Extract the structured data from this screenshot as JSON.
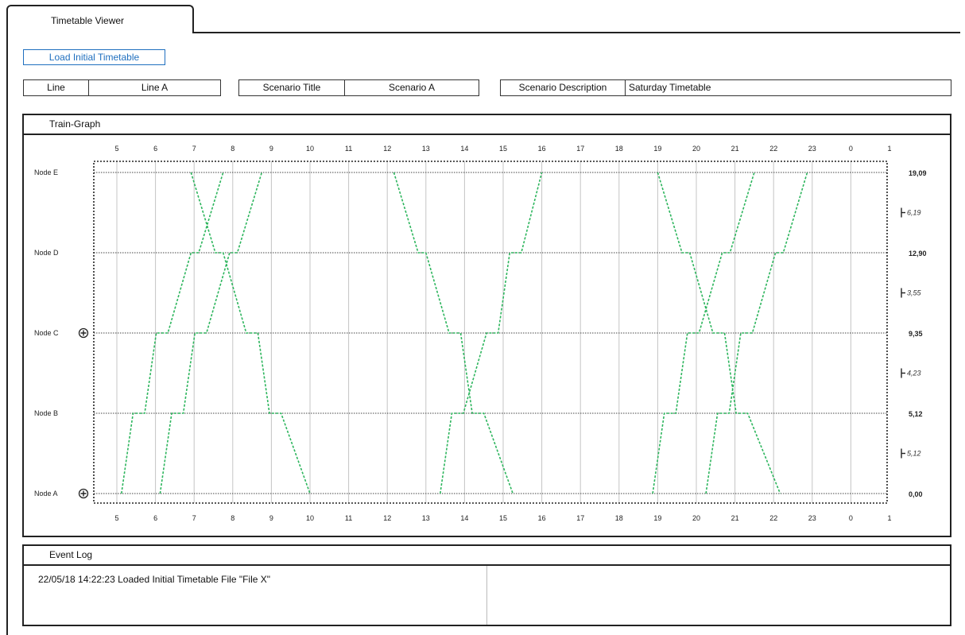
{
  "tab": {
    "label": "Timetable Viewer"
  },
  "load_button": {
    "label": "Load Initial Timetable"
  },
  "fields": [
    {
      "label": "Line",
      "value": "Line A"
    },
    {
      "label": "Scenario Title",
      "value": "Scenario A"
    },
    {
      "label": "Scenario Description",
      "value": "Saturday Timetable"
    }
  ],
  "train_graph": {
    "title": "Train-Graph",
    "hours": [
      "5",
      "6",
      "7",
      "8",
      "9",
      "10",
      "11",
      "12",
      "13",
      "14",
      "15",
      "16",
      "17",
      "18",
      "19",
      "20",
      "21",
      "22",
      "23",
      "0",
      "1"
    ],
    "nodes": [
      {
        "name": "Node E",
        "distance": "19,09"
      },
      {
        "name": "Node D",
        "distance": "12,90"
      },
      {
        "name": "Node C",
        "distance": "9,35"
      },
      {
        "name": "Node B",
        "distance": "5,12"
      },
      {
        "name": "Node A",
        "distance": "0,00"
      }
    ],
    "segment_distances": [
      "6,19",
      "3,55",
      "4,23",
      "5,12"
    ],
    "expand_icons": [
      "Node C",
      "Node A"
    ],
    "train_color": "#2db55d",
    "trains": [
      {
        "dir": "up",
        "pts": [
          [
            5.12,
            0
          ],
          [
            5.42,
            1
          ],
          [
            5.72,
            1
          ],
          [
            6.02,
            2
          ],
          [
            6.32,
            2
          ],
          [
            6.92,
            3
          ],
          [
            7.12,
            3
          ],
          [
            7.75,
            4
          ]
        ]
      },
      {
        "dir": "up",
        "pts": [
          [
            6.12,
            0
          ],
          [
            6.42,
            1
          ],
          [
            6.72,
            1
          ],
          [
            7.02,
            2
          ],
          [
            7.32,
            2
          ],
          [
            7.92,
            3
          ],
          [
            8.12,
            3
          ],
          [
            8.75,
            4
          ]
        ]
      },
      {
        "dir": "down",
        "pts": [
          [
            6.92,
            4
          ],
          [
            7.55,
            3
          ],
          [
            7.75,
            3
          ],
          [
            8.35,
            2
          ],
          [
            8.65,
            2
          ],
          [
            8.95,
            1
          ],
          [
            9.25,
            1
          ],
          [
            10.0,
            0
          ]
        ]
      },
      {
        "dir": "down",
        "pts": [
          [
            12.17,
            4
          ],
          [
            12.8,
            3
          ],
          [
            13.0,
            3
          ],
          [
            13.6,
            2
          ],
          [
            13.9,
            2
          ],
          [
            14.2,
            1
          ],
          [
            14.5,
            1
          ],
          [
            15.25,
            0
          ]
        ]
      },
      {
        "dir": "up",
        "pts": [
          [
            13.37,
            0
          ],
          [
            13.67,
            1
          ],
          [
            13.97,
            1
          ],
          [
            14.57,
            2
          ],
          [
            14.87,
            2
          ],
          [
            15.17,
            3
          ],
          [
            15.47,
            3
          ],
          [
            16.0,
            4
          ]
        ]
      },
      {
        "dir": "down",
        "pts": [
          [
            19.0,
            4
          ],
          [
            19.63,
            3
          ],
          [
            19.83,
            3
          ],
          [
            20.43,
            2
          ],
          [
            20.73,
            2
          ],
          [
            21.03,
            1
          ],
          [
            21.33,
            1
          ],
          [
            22.17,
            0
          ]
        ]
      },
      {
        "dir": "up",
        "pts": [
          [
            18.87,
            0
          ],
          [
            19.17,
            1
          ],
          [
            19.47,
            1
          ],
          [
            19.77,
            2
          ],
          [
            20.07,
            2
          ],
          [
            20.67,
            3
          ],
          [
            20.87,
            3
          ],
          [
            21.5,
            4
          ]
        ]
      },
      {
        "dir": "up",
        "pts": [
          [
            20.25,
            0
          ],
          [
            20.55,
            1
          ],
          [
            20.85,
            1
          ],
          [
            21.15,
            2
          ],
          [
            21.45,
            2
          ],
          [
            22.05,
            3
          ],
          [
            22.25,
            3
          ],
          [
            22.87,
            4
          ]
        ]
      }
    ]
  },
  "event_log": {
    "title": "Event Log",
    "entries": [
      "22/05/18 14:22:23 Loaded Initial Timetable File \"File X\""
    ]
  }
}
